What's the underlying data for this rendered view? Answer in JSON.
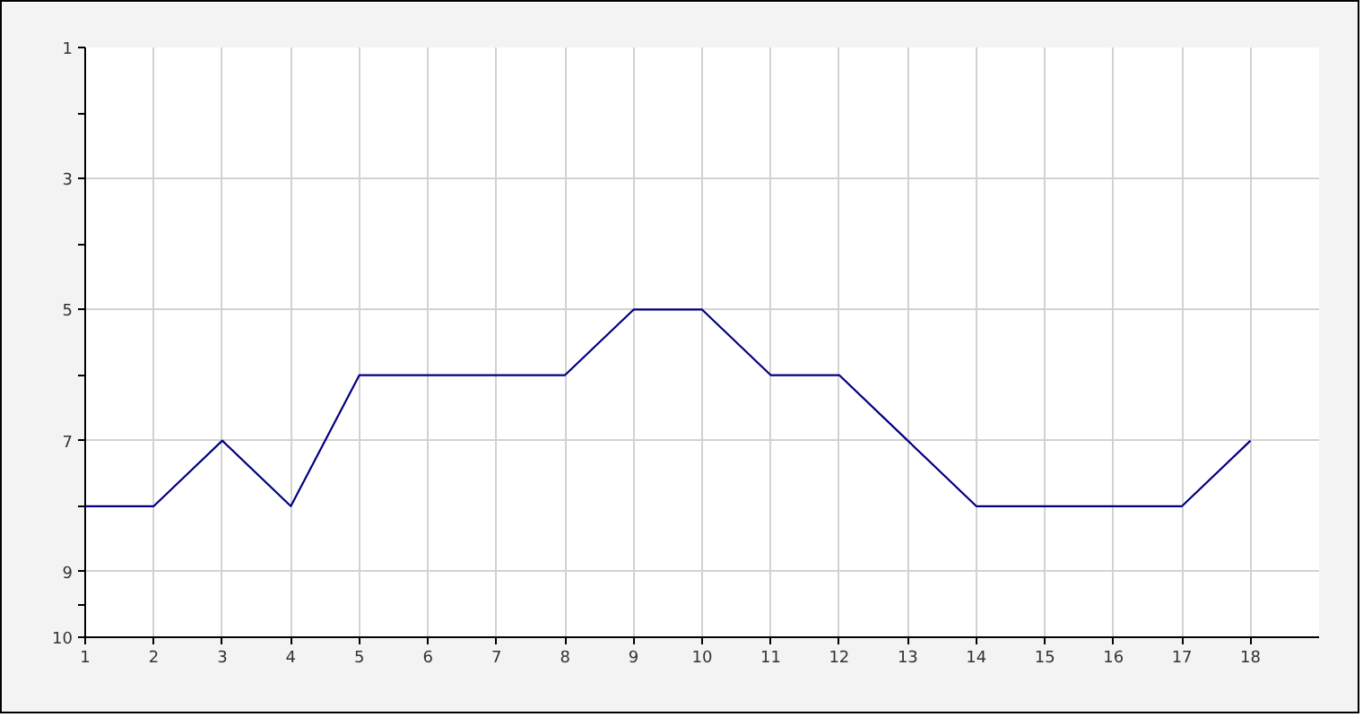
{
  "chart_data": {
    "type": "line",
    "x": [
      1,
      2,
      3,
      4,
      5,
      6,
      7,
      8,
      9,
      10,
      11,
      12,
      13,
      14,
      15,
      16,
      17,
      18
    ],
    "series": [
      {
        "color": "#000080",
        "values": [
          8,
          8,
          7,
          8,
          6,
          6,
          6,
          6,
          5,
          5,
          6,
          6,
          7,
          8,
          8,
          8,
          8,
          7
        ]
      }
    ],
    "xlim": [
      1,
      19
    ],
    "xticks": [
      1,
      2,
      3,
      4,
      5,
      6,
      7,
      8,
      9,
      10,
      11,
      12,
      13,
      14,
      15,
      16,
      17,
      18
    ],
    "ylim": [
      10,
      1
    ],
    "yticks": [
      1,
      3,
      5,
      7,
      9,
      10
    ],
    "grid": true
  }
}
